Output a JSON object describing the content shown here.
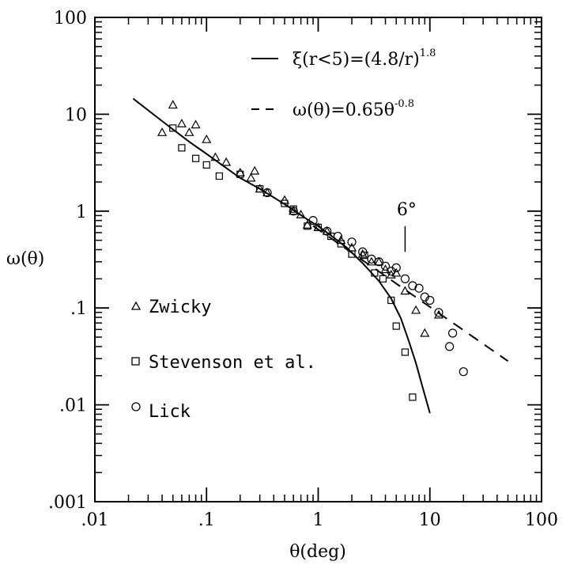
{
  "chart_data": {
    "type": "scatter",
    "title": "",
    "xlabel": "θ(deg)",
    "ylabel": "ω(θ)",
    "xscale": "log",
    "yscale": "log",
    "xlim": [
      0.01,
      100
    ],
    "ylim": [
      0.001,
      100
    ],
    "x_ticks": [
      {
        "value": 0.01,
        "label": ".01"
      },
      {
        "value": 0.1,
        "label": ".1"
      },
      {
        "value": 1,
        "label": "1"
      },
      {
        "value": 10,
        "label": "10"
      },
      {
        "value": 100,
        "label": "100"
      }
    ],
    "y_ticks": [
      {
        "value": 0.001,
        "label": ".001"
      },
      {
        "value": 0.01,
        "label": ".01"
      },
      {
        "value": 0.1,
        "label": ".1"
      },
      {
        "value": 1,
        "label": "1"
      },
      {
        "value": 10,
        "label": "10"
      },
      {
        "value": 100,
        "label": "100"
      }
    ],
    "grid": false,
    "legend_position": "inside left",
    "lines": [
      {
        "name_prefix": "ξ(r<5)=(4.8/r)",
        "name_sup": "1.8",
        "style": "solid",
        "x": [
          0.022,
          0.04,
          0.07,
          0.1,
          0.2,
          0.3,
          0.5,
          0.8,
          1.0,
          1.3,
          1.8,
          2.5,
          3.5,
          4.5,
          5.5,
          6.5,
          7.5,
          8.5,
          10
        ],
        "y": [
          14.5,
          8.5,
          5.2,
          3.9,
          2.2,
          1.7,
          1.18,
          0.82,
          0.7,
          0.56,
          0.42,
          0.29,
          0.19,
          0.125,
          0.078,
          0.045,
          0.027,
          0.016,
          0.0082
        ]
      },
      {
        "name_prefix": "ω(θ)=0.65θ",
        "name_sup": "-0.8",
        "style": "dashed",
        "x": [
          0.9,
          50
        ],
        "y": [
          0.705,
          0.0283
        ]
      }
    ],
    "series": [
      {
        "name": "Zwicky",
        "marker": "triangle",
        "points": [
          [
            0.04,
            6.5
          ],
          [
            0.05,
            12.5
          ],
          [
            0.06,
            8.0
          ],
          [
            0.07,
            6.5
          ],
          [
            0.08,
            7.8
          ],
          [
            0.1,
            5.5
          ],
          [
            0.12,
            3.6
          ],
          [
            0.15,
            3.2
          ],
          [
            0.2,
            2.5
          ],
          [
            0.25,
            2.2
          ],
          [
            0.27,
            2.6
          ],
          [
            0.3,
            1.7
          ],
          [
            0.35,
            1.55
          ],
          [
            0.5,
            1.3
          ],
          [
            0.6,
            1.0
          ],
          [
            0.7,
            0.92
          ],
          [
            0.8,
            0.72
          ],
          [
            1.0,
            0.68
          ],
          [
            1.2,
            0.62
          ],
          [
            1.6,
            0.5
          ],
          [
            2.0,
            0.42
          ],
          [
            2.5,
            0.36
          ],
          [
            3.0,
            0.3
          ],
          [
            3.5,
            0.3
          ],
          [
            4.0,
            0.25
          ],
          [
            4.5,
            0.22
          ],
          [
            5.0,
            0.23
          ],
          [
            6.0,
            0.15
          ],
          [
            7.5,
            0.095
          ],
          [
            9.0,
            0.055
          ],
          [
            12,
            0.085
          ]
        ]
      },
      {
        "name": "Stevenson et al.",
        "marker": "square",
        "points": [
          [
            0.05,
            7.2
          ],
          [
            0.06,
            4.5
          ],
          [
            0.08,
            3.5
          ],
          [
            0.1,
            3.0
          ],
          [
            0.13,
            2.3
          ],
          [
            0.2,
            2.4
          ],
          [
            0.3,
            1.7
          ],
          [
            0.5,
            1.2
          ],
          [
            0.6,
            1.05
          ],
          [
            0.8,
            0.7
          ],
          [
            1.0,
            0.68
          ],
          [
            1.3,
            0.55
          ],
          [
            1.6,
            0.46
          ],
          [
            2.0,
            0.36
          ],
          [
            2.6,
            0.35
          ],
          [
            3.2,
            0.23
          ],
          [
            3.8,
            0.2
          ],
          [
            4.5,
            0.12
          ],
          [
            5.0,
            0.065
          ],
          [
            6.0,
            0.035
          ],
          [
            7.0,
            0.012
          ]
        ]
      },
      {
        "name": "Lick",
        "marker": "circle",
        "points": [
          [
            0.35,
            1.55
          ],
          [
            0.6,
            1.0
          ],
          [
            0.9,
            0.8
          ],
          [
            1.2,
            0.62
          ],
          [
            1.5,
            0.55
          ],
          [
            2.0,
            0.48
          ],
          [
            2.5,
            0.38
          ],
          [
            3.0,
            0.32
          ],
          [
            3.5,
            0.3
          ],
          [
            4.0,
            0.27
          ],
          [
            4.5,
            0.24
          ],
          [
            5.0,
            0.26
          ],
          [
            6.0,
            0.2
          ],
          [
            7.0,
            0.17
          ],
          [
            8.0,
            0.16
          ],
          [
            9.0,
            0.13
          ],
          [
            10,
            0.12
          ],
          [
            12,
            0.09
          ],
          [
            15,
            0.04
          ],
          [
            16,
            0.055
          ],
          [
            20,
            0.022
          ]
        ]
      }
    ],
    "annotation": {
      "label": "6°",
      "x": 6,
      "y_bottom": 0.38,
      "y_top": 0.7
    }
  }
}
